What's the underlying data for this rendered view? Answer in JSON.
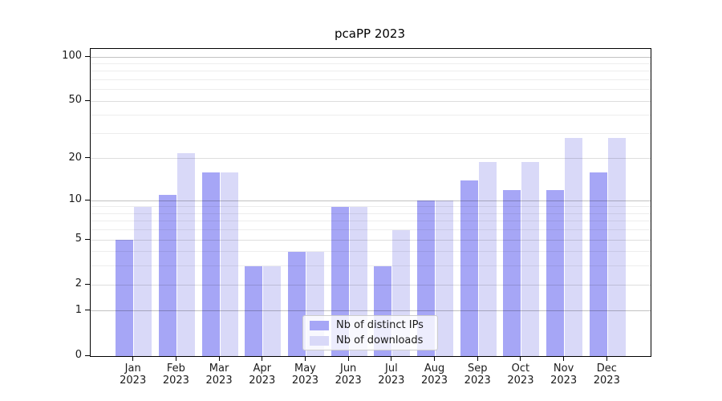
{
  "title": "pcaPP 2023",
  "chart_data": {
    "type": "bar",
    "title": "pcaPP 2023",
    "categories": [
      "Jan",
      "Feb",
      "Mar",
      "Apr",
      "May",
      "Jun",
      "Jul",
      "Aug",
      "Sep",
      "Oct",
      "Nov",
      "Dec"
    ],
    "x_tick_line2": "2023",
    "series": [
      {
        "name": "Nb of distinct IPs",
        "key": "ips",
        "values": [
          5,
          11,
          16,
          3,
          4,
          9,
          3,
          10,
          14,
          12,
          12,
          16
        ]
      },
      {
        "name": "Nb of downloads",
        "key": "downloads",
        "values": [
          9,
          22,
          16,
          3,
          4,
          9,
          6,
          10,
          19,
          19,
          28,
          28
        ]
      }
    ],
    "xlabel": "",
    "ylabel": "",
    "yscale": "log1p",
    "ylim": [
      0,
      113
    ],
    "yticks": [
      100,
      50,
      20,
      10,
      5,
      2,
      1,
      0
    ],
    "ytick_decades": [
      1,
      10,
      100
    ],
    "ytick_mids": [
      2,
      5,
      20,
      50
    ],
    "ytick_minors": [
      3,
      4,
      6,
      7,
      8,
      9,
      30,
      40,
      60,
      70,
      80,
      90
    ],
    "grid": true,
    "legend_position": "lower center inside"
  },
  "colors": {
    "ips_bar": "#a6a6f6",
    "downloads_bar": "#d9d9f8",
    "grid_decade": "rgba(0,0,0,0.24)",
    "grid_mid": "rgba(0,0,0,0.13)",
    "grid_minor": "rgba(0,0,0,0.07)",
    "axis": "#000000",
    "text": "#1a1a1a",
    "legend_border": "#cccccc",
    "legend_bg": "rgba(255,255,255,0.8)"
  }
}
